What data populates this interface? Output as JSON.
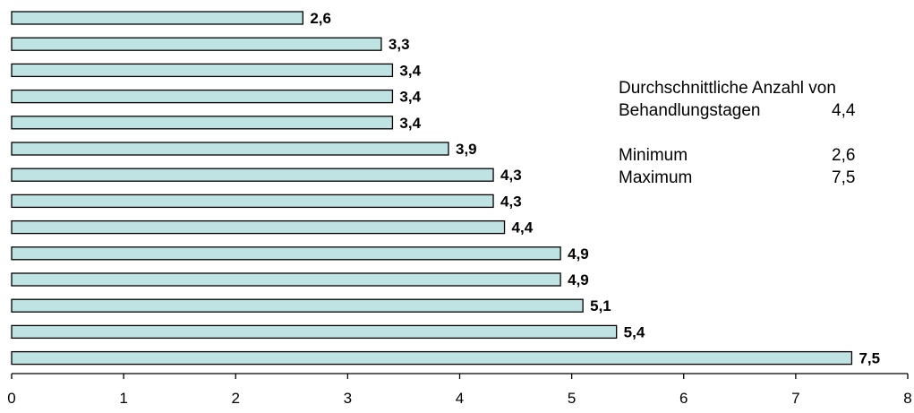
{
  "chart_data": {
    "type": "bar",
    "orientation": "horizontal",
    "values": [
      2.6,
      3.3,
      3.4,
      3.4,
      3.4,
      3.9,
      4.3,
      4.3,
      4.4,
      4.9,
      4.9,
      5.1,
      5.4,
      7.5
    ],
    "value_labels": [
      "2,6",
      "3,3",
      "3,4",
      "3,4",
      "3,4",
      "3,9",
      "4,3",
      "4,3",
      "4,4",
      "4,9",
      "4,9",
      "5,1",
      "5,4",
      "7,5"
    ],
    "xlim": [
      0,
      8
    ],
    "x_ticks": [
      0,
      1,
      2,
      3,
      4,
      5,
      6,
      7,
      8
    ],
    "x_tick_labels": [
      "0",
      "1",
      "2",
      "3",
      "4",
      "5",
      "6",
      "7",
      "8"
    ],
    "grid": false,
    "bar_color": "#bfe3e3",
    "bar_edge_color": "#000000"
  },
  "summary": {
    "avg_label_line1": "Durchschnittliche Anzahl von",
    "avg_label_line2": "Behandlungstagen",
    "avg_value": "4,4",
    "min_label": "Minimum",
    "min_value": "2,6",
    "max_label": "Maximum",
    "max_value": "7,5"
  }
}
